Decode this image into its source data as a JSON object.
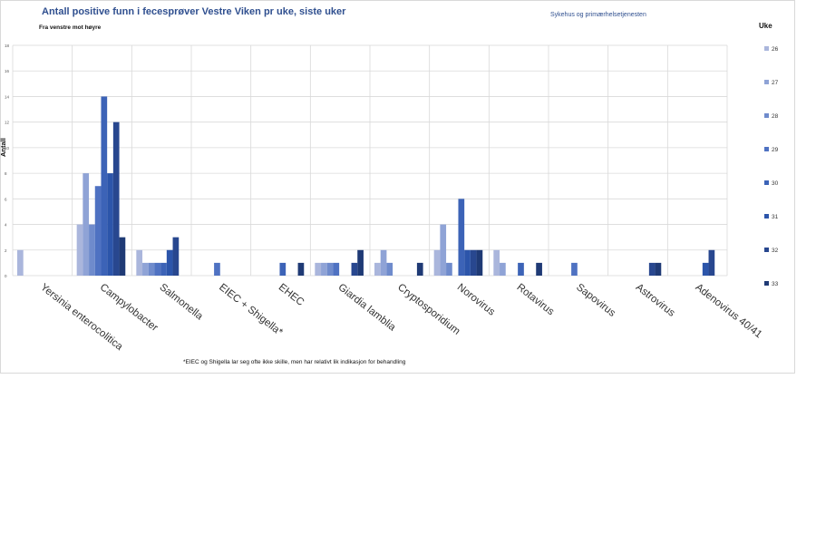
{
  "chart_data": {
    "type": "bar",
    "title": "Antall positive funn i fecesprøver Vestre Viken pr uke, siste uker",
    "subtitle": "Fra venstre mot høyre",
    "org_label": "Sykehus og primærhelsetjenesten",
    "ylabel": "Antall",
    "ylim": [
      0,
      18
    ],
    "yticks": [
      0,
      2,
      4,
      6,
      8,
      10,
      12,
      14,
      16,
      18
    ],
    "grid": true,
    "legend_title": "Uke",
    "legend_placement": "right",
    "categories": [
      "Yersinia enterocolitica",
      "Campylobacter",
      "Salmonella",
      "EIEC + Shigella*",
      "EHEC",
      "Giardia lamblia",
      "Cryptosporidium",
      "Norovirus",
      "Rotavirus",
      "Sapovirus",
      "Astrovirus",
      "Adenovirus 40/41"
    ],
    "series": [
      {
        "name": "26",
        "color": "#aab6dc",
        "values": [
          2,
          4,
          2,
          0,
          0,
          1,
          1,
          2,
          2,
          0,
          0,
          0
        ]
      },
      {
        "name": "27",
        "color": "#8fa3d6",
        "values": [
          0,
          8,
          1,
          0,
          0,
          1,
          2,
          4,
          1,
          0,
          0,
          0
        ]
      },
      {
        "name": "28",
        "color": "#6f8bcc",
        "values": [
          0,
          4,
          1,
          0,
          0,
          1,
          1,
          1,
          0,
          0,
          0,
          0
        ]
      },
      {
        "name": "29",
        "color": "#4f72c2",
        "values": [
          0,
          7,
          1,
          1,
          0,
          1,
          0,
          0,
          0,
          1,
          0,
          0
        ]
      },
      {
        "name": "30",
        "color": "#3c63b7",
        "values": [
          0,
          14,
          1,
          0,
          1,
          0,
          0,
          6,
          1,
          0,
          0,
          0
        ]
      },
      {
        "name": "31",
        "color": "#2c55aa",
        "values": [
          0,
          8,
          2,
          0,
          0,
          0,
          0,
          2,
          0,
          0,
          0,
          1
        ]
      },
      {
        "name": "32",
        "color": "#28478f",
        "values": [
          0,
          12,
          3,
          0,
          0,
          1,
          0,
          2,
          0,
          0,
          1,
          2
        ]
      },
      {
        "name": "33",
        "color": "#1f3a75",
        "values": [
          0,
          3,
          0,
          0,
          1,
          2,
          1,
          2,
          1,
          0,
          1,
          0
        ]
      }
    ],
    "footnote": "*EIEC og Shigella lar seg ofte ikke skille, men har relativt lik indikasjon for behandling"
  }
}
